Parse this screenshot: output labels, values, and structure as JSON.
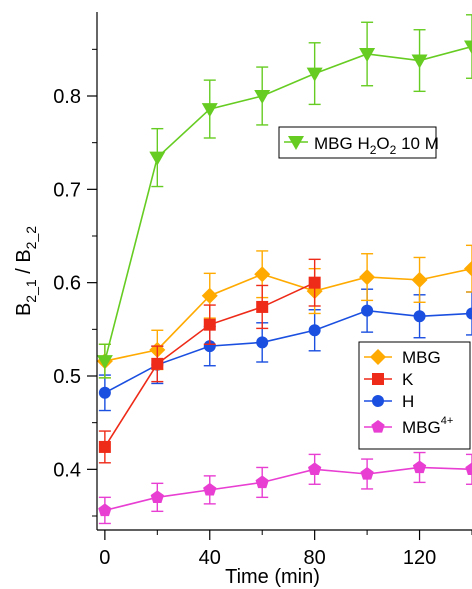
{
  "chart_data": {
    "type": "line",
    "xlabel": "Time (min)",
    "ylabel_main": "B",
    "ylabel_sub1": "2_1",
    "ylabel_sep": " / B",
    "ylabel_sub2": "2_2",
    "xlim": [
      -3,
      140
    ],
    "ylim": [
      0.335,
      0.89
    ],
    "xticks": [
      0,
      40,
      80,
      120
    ],
    "yticks": [
      0.4,
      0.5,
      0.6,
      0.7,
      0.8
    ],
    "xtick_labels": [
      "0",
      "40",
      "80",
      "120"
    ],
    "ytick_labels": [
      "0.4",
      "0.5",
      "0.6",
      "0.7",
      "0.8"
    ],
    "series": [
      {
        "key": "h2o2",
        "name_parts": [
          "MBG H",
          "2",
          "O",
          "2",
          " 10 M"
        ],
        "color": "#66cc22",
        "marker": "triangle-down",
        "x": [
          0,
          20,
          40,
          60,
          80,
          100,
          120,
          140
        ],
        "y": [
          0.516,
          0.734,
          0.786,
          0.8,
          0.824,
          0.845,
          0.838,
          0.853
        ],
        "err": [
          0.018,
          0.031,
          0.031,
          0.031,
          0.033,
          0.034,
          0.033,
          0.034
        ]
      },
      {
        "key": "mbg",
        "name": "MBG",
        "color": "#ffaa00",
        "marker": "diamond",
        "x": [
          0,
          20,
          40,
          60,
          80,
          100,
          120,
          140
        ],
        "y": [
          0.516,
          0.528,
          0.586,
          0.609,
          0.591,
          0.606,
          0.603,
          0.615
        ],
        "err": [
          0.018,
          0.021,
          0.024,
          0.025,
          0.024,
          0.025,
          0.024,
          0.025
        ]
      },
      {
        "key": "k",
        "name": "K",
        "color": "#ee2a18",
        "marker": "square",
        "x": [
          0,
          20,
          40,
          60,
          80
        ],
        "y": [
          0.424,
          0.513,
          0.555,
          0.574,
          0.6
        ],
        "err": [
          0.017,
          0.019,
          0.021,
          0.023,
          0.025
        ]
      },
      {
        "key": "h",
        "name": "H",
        "color": "#1a4fe0",
        "marker": "circle",
        "x": [
          0,
          20,
          40,
          60,
          80,
          100,
          120,
          140
        ],
        "y": [
          0.482,
          0.512,
          0.532,
          0.536,
          0.549,
          0.57,
          0.564,
          0.567
        ],
        "err": [
          0.019,
          0.02,
          0.021,
          0.021,
          0.022,
          0.023,
          0.023,
          0.023
        ]
      },
      {
        "key": "mbg4",
        "name": "MBG",
        "name_sup": "4+",
        "color": "#e83ed2",
        "marker": "pentagon",
        "x": [
          0,
          20,
          40,
          60,
          80,
          100,
          120,
          140
        ],
        "y": [
          0.356,
          0.37,
          0.378,
          0.386,
          0.4,
          0.395,
          0.402,
          0.4
        ],
        "err": [
          0.014,
          0.015,
          0.015,
          0.016,
          0.016,
          0.016,
          0.016,
          0.016
        ]
      }
    ],
    "legends": [
      {
        "placement": "upper-right",
        "keys": [
          "h2o2"
        ]
      },
      {
        "placement": "center-right",
        "keys": [
          "mbg",
          "k",
          "h",
          "mbg4"
        ]
      }
    ],
    "grid": false
  }
}
